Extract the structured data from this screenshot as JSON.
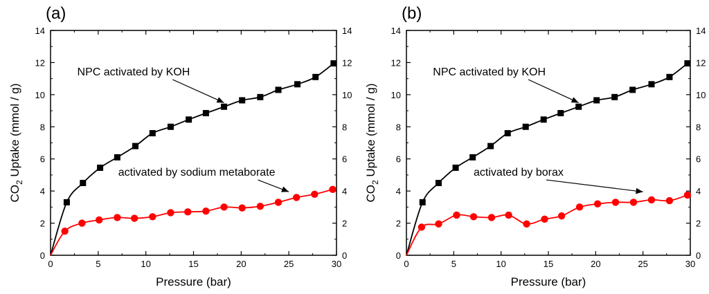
{
  "chart_data": [
    {
      "type": "line",
      "panel_label": "(a)",
      "xlabel": "Pressure (bar)",
      "ylabel": "CO",
      "ylabel_subscript": "2",
      "ylabel_suffix": " Uptake (mmol / g)",
      "xlim": [
        0,
        30
      ],
      "ylim": [
        0,
        14
      ],
      "x_ticks": [
        "0",
        "5",
        "10",
        "15",
        "20",
        "25",
        "30"
      ],
      "y_ticks": [
        "0",
        "2",
        "4",
        "6",
        "8",
        "10",
        "12",
        "14"
      ],
      "y_ticks_right": [
        "0",
        "2",
        "4",
        "6",
        "8",
        "10",
        "12",
        "14"
      ],
      "series": [
        {
          "name": "NPC activated by KOH",
          "color": "#000000",
          "marker": "square",
          "x": [
            0,
            1.7,
            3.4,
            5.2,
            7.0,
            8.9,
            10.7,
            12.6,
            14.5,
            16.3,
            18.2,
            20.1,
            22.0,
            23.9,
            25.9,
            27.8,
            29.7
          ],
          "y": [
            0,
            3.3,
            4.5,
            5.45,
            6.1,
            6.8,
            7.6,
            8.0,
            8.45,
            8.85,
            9.25,
            9.65,
            9.85,
            10.3,
            10.65,
            11.1,
            11.95
          ]
        },
        {
          "name": "activated by sodium metaborate",
          "color": "#ff0000",
          "marker": "circle",
          "x": [
            0,
            1.5,
            3.3,
            5.1,
            7.0,
            8.8,
            10.7,
            12.6,
            14.4,
            16.3,
            18.2,
            20.1,
            22.0,
            23.9,
            25.8,
            27.7,
            29.6
          ],
          "y": [
            0,
            1.5,
            2.0,
            2.2,
            2.35,
            2.3,
            2.4,
            2.65,
            2.7,
            2.75,
            3.0,
            2.95,
            3.05,
            3.3,
            3.6,
            3.8,
            4.1
          ]
        }
      ],
      "annotations": [
        {
          "text": "NPC activated by KOH",
          "x": 2.8,
          "y": 11.2,
          "arrow_to": [
            18.2,
            9.5
          ]
        },
        {
          "text": "activated by sodium metaborate",
          "x": 7.1,
          "y": 4.95,
          "arrow_to": [
            25.0,
            3.95
          ]
        }
      ]
    },
    {
      "type": "line",
      "panel_label": "(b)",
      "xlabel": "Pressure (bar)",
      "ylabel": "CO",
      "ylabel_subscript": "2",
      "ylabel_suffix": " Uptake (mmol / g)",
      "xlim": [
        0,
        30
      ],
      "ylim": [
        0,
        14
      ],
      "x_ticks": [
        "0",
        "5",
        "10",
        "15",
        "20",
        "25",
        "30"
      ],
      "y_ticks": [
        "0",
        "2",
        "4",
        "6",
        "8",
        "10",
        "12",
        "14"
      ],
      "y_ticks_right": [
        "0",
        "2",
        "4",
        "6",
        "8",
        "10",
        "12",
        "14"
      ],
      "series": [
        {
          "name": "NPC activated by KOH",
          "color": "#000000",
          "marker": "square",
          "x": [
            0,
            1.7,
            3.4,
            5.2,
            7.0,
            8.9,
            10.7,
            12.6,
            14.5,
            16.3,
            18.2,
            20.1,
            22.0,
            23.9,
            25.9,
            27.8,
            29.7
          ],
          "y": [
            0,
            3.3,
            4.5,
            5.45,
            6.1,
            6.8,
            7.6,
            8.0,
            8.45,
            8.85,
            9.25,
            9.65,
            9.85,
            10.3,
            10.65,
            11.1,
            11.95
          ]
        },
        {
          "name": "activated by borax",
          "color": "#ff0000",
          "marker": "circle",
          "x": [
            0,
            1.6,
            3.4,
            5.3,
            7.1,
            9.0,
            10.8,
            12.7,
            14.6,
            16.4,
            18.3,
            20.2,
            22.1,
            24.0,
            25.9,
            27.8,
            29.7
          ],
          "y": [
            0,
            1.75,
            1.95,
            2.5,
            2.4,
            2.35,
            2.5,
            1.95,
            2.25,
            2.45,
            3.0,
            3.2,
            3.3,
            3.3,
            3.45,
            3.4,
            3.75
          ]
        }
      ],
      "annotations": [
        {
          "text": "NPC activated by KOH",
          "x": 2.8,
          "y": 11.2,
          "arrow_to": [
            18.2,
            9.5
          ]
        },
        {
          "text": "activated by borax",
          "x": 7.1,
          "y": 4.95,
          "arrow_to": [
            25.0,
            3.95
          ]
        }
      ]
    }
  ]
}
